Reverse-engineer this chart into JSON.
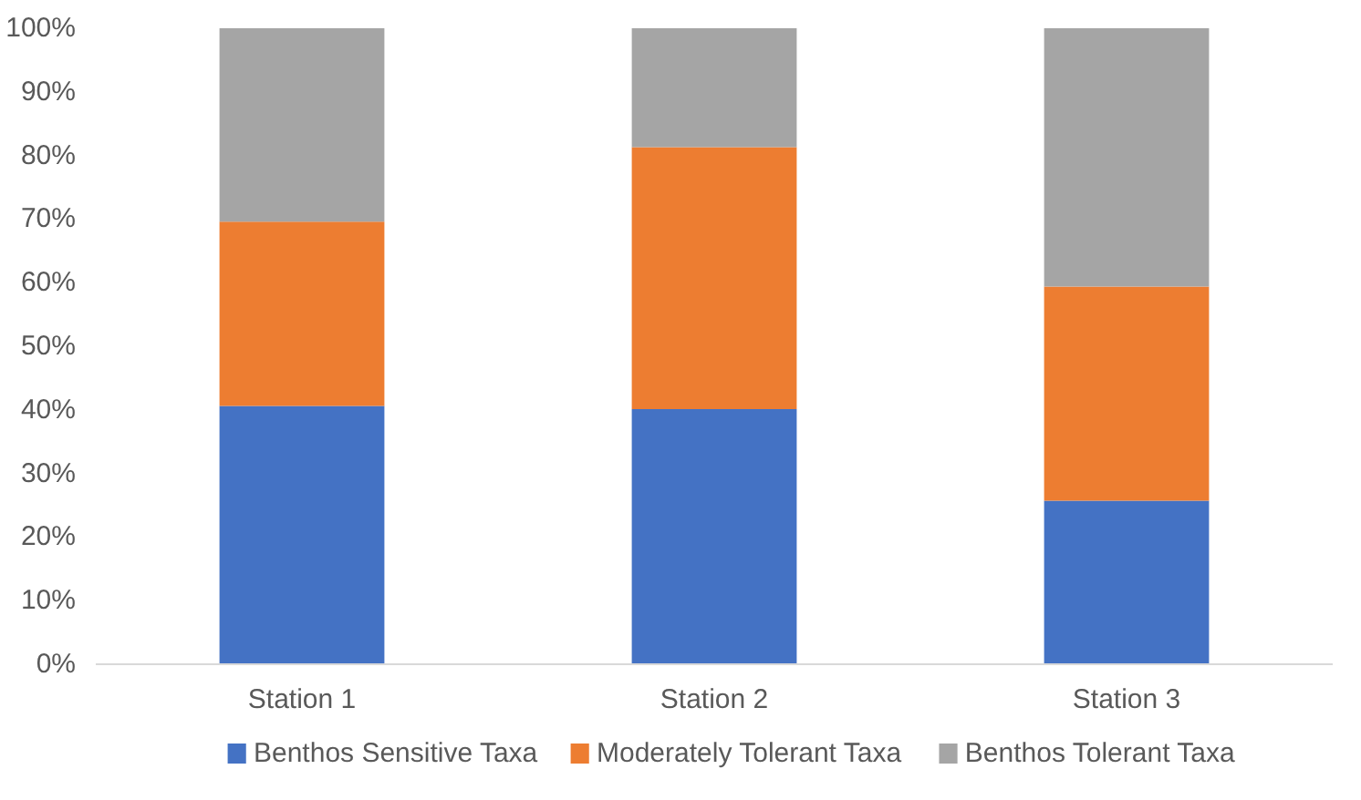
{
  "chart_data": {
    "type": "bar",
    "stacked": true,
    "categories": [
      "Station 1",
      "Station 2",
      "Station 3"
    ],
    "series": [
      {
        "name": "Benthos Sensitive Taxa",
        "color": "#4472c4",
        "values": [
          40.6,
          40.1,
          25.7
        ]
      },
      {
        "name": "Moderately Tolerant Taxa",
        "color": "#ed7d31",
        "values": [
          29.0,
          41.2,
          33.7
        ]
      },
      {
        "name": "Benthos Tolerant Taxa",
        "color": "#a5a5a5",
        "values": [
          30.4,
          18.7,
          40.6
        ]
      }
    ],
    "ylim": [
      0,
      100
    ],
    "yticks": [
      {
        "value": 0,
        "label": "0%"
      },
      {
        "value": 10,
        "label": "10%"
      },
      {
        "value": 20,
        "label": "20%"
      },
      {
        "value": 30,
        "label": "30%"
      },
      {
        "value": 40,
        "label": "40%"
      },
      {
        "value": 50,
        "label": "50%"
      },
      {
        "value": 60,
        "label": "60%"
      },
      {
        "value": 70,
        "label": "70%"
      },
      {
        "value": 80,
        "label": "80%"
      },
      {
        "value": 90,
        "label": "90%"
      },
      {
        "value": 100,
        "label": "100%"
      }
    ],
    "grid": false,
    "legend": "bottom"
  }
}
